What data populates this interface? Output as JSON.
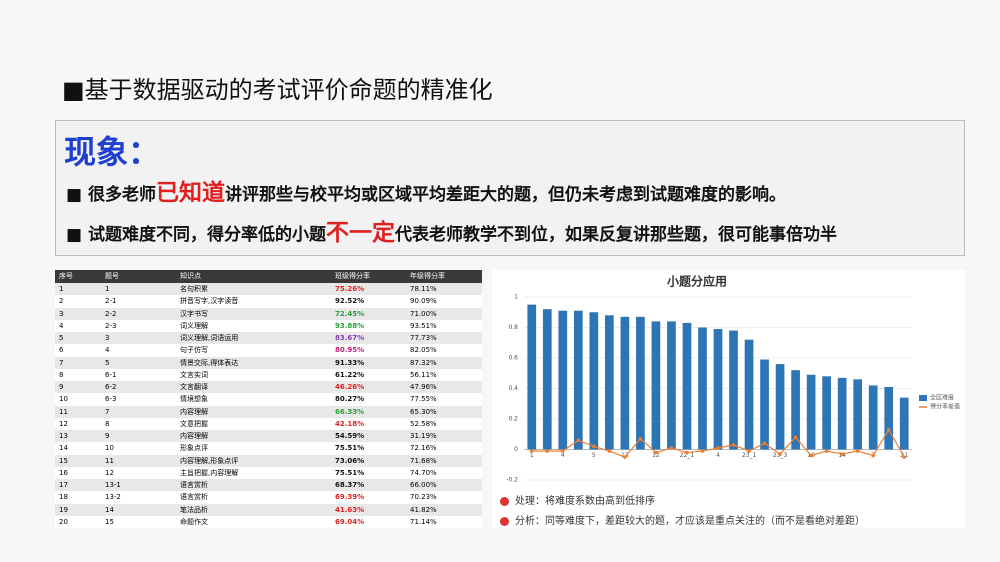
{
  "header": {
    "title": "■基于数据驱动的考试评价命题的精准化"
  },
  "callout": {
    "heading": "现象：",
    "bullets": [
      [
        "■  很多老师",
        "已知道",
        "讲评那些与校平均或区域平均差距大的题，但仍未考虑到试题难度的影响。"
      ],
      [
        "■  试题难度不同，得分率低的小题",
        "不一定",
        "代表老师教学不到位，如果反复讲那些题，很可能事倍功半"
      ]
    ]
  },
  "table": {
    "header": [
      "序号",
      "题号",
      "知识点",
      "班级得分率",
      "年级得分率"
    ],
    "rows": [
      [
        "1",
        "1",
        "名句积累",
        "75.26%",
        "78.11%"
      ],
      [
        "2",
        "2-1",
        "拼音写字,汉字读音",
        "92.52%",
        "90.09%"
      ],
      [
        "3",
        "2-2",
        "汉字书写",
        "72.45%",
        "71.00%"
      ],
      [
        "4",
        "2-3",
        "词义理解",
        "93.88%",
        "93.51%"
      ],
      [
        "5",
        "3",
        "词义理解,词语运用",
        "83.67%",
        "77.73%"
      ],
      [
        "6",
        "4",
        "句子仿写",
        "80.95%",
        "82.05%"
      ],
      [
        "7",
        "5",
        "情景交际,得体表达",
        "91.33%",
        "87.32%"
      ],
      [
        "8",
        "6-1",
        "文言实词",
        "61.22%",
        "56.11%"
      ],
      [
        "9",
        "6-2",
        "文言翻译",
        "46.26%",
        "47.96%"
      ],
      [
        "10",
        "6-3",
        "情境想象",
        "80.27%",
        "77.55%"
      ],
      [
        "11",
        "7",
        "内容理解",
        "66.33%",
        "65.30%"
      ],
      [
        "12",
        "8",
        "文意把握",
        "42.18%",
        "52.58%"
      ],
      [
        "13",
        "9",
        "内容理解",
        "54.59%",
        "31.19%"
      ],
      [
        "14",
        "10",
        "形象点评",
        "75.51%",
        "72.16%"
      ],
      [
        "15",
        "11",
        "内容理解,形象点评",
        "73.06%",
        "71.68%"
      ],
      [
        "16",
        "12",
        "主旨把握,内容理解",
        "75.51%",
        "74.70%"
      ],
      [
        "17",
        "13-1",
        "语言赏析",
        "68.37%",
        "66.00%"
      ],
      [
        "18",
        "13-2",
        "语言赏析",
        "69.39%",
        "70.23%"
      ],
      [
        "19",
        "14",
        "笔法品析",
        "41.63%",
        "41.82%"
      ],
      [
        "20",
        "15",
        "命题作文",
        "69.04%",
        "71.14%"
      ]
    ],
    "class_rate_colors": [
      "#e02020",
      "#111",
      "#2a9d3a",
      "#2a9d3a",
      "#8a3ab9",
      "#c0207a",
      "#111",
      "#111",
      "#e02020",
      "#111",
      "#2a9d3a",
      "#e02020",
      "#111",
      "#111",
      "#111",
      "#111",
      "#111",
      "#e02020",
      "#e02020",
      "#e02020"
    ]
  },
  "chart": {
    "type": "bar",
    "title": "小题分应用",
    "categories": [
      "1",
      null,
      "4",
      null,
      "5",
      null,
      "13",
      null,
      "12",
      null,
      "22_1",
      null,
      "4",
      null,
      "23_1",
      null,
      "23_3",
      null,
      "10",
      null,
      "14",
      null,
      "7",
      null,
      "21"
    ],
    "series": [
      {
        "name": "全区难度",
        "color": "#2e75b6",
        "values": [
          0.95,
          0.92,
          0.91,
          0.91,
          0.9,
          0.88,
          0.87,
          0.87,
          0.84,
          0.84,
          0.83,
          0.8,
          0.79,
          0.78,
          0.72,
          0.59,
          0.56,
          0.52,
          0.49,
          0.48,
          0.47,
          0.46,
          0.42,
          0.41,
          0.34
        ]
      },
      {
        "name": "得分率差值",
        "color": "#ed7d31",
        "type": "line",
        "values": [
          -0.01,
          -0.01,
          -0.01,
          0.06,
          0.02,
          -0.01,
          -0.05,
          0.07,
          -0.02,
          0.01,
          -0.02,
          -0.01,
          0.01,
          0.03,
          -0.01,
          0.04,
          -0.03,
          0.08,
          -0.04,
          -0.01,
          -0.03,
          -0.01,
          -0.04,
          0.13,
          -0.05
        ]
      }
    ],
    "ylim": [
      -0.2,
      1
    ],
    "yticks": [
      -0.2,
      0,
      0.2,
      0.4,
      0.6,
      0.8,
      1
    ],
    "notes": [
      "处理：将难度系数由高到低排序",
      "分析：同等难度下，差距较大的题，才应该是重点关注的（而不是看绝对差距）"
    ]
  }
}
